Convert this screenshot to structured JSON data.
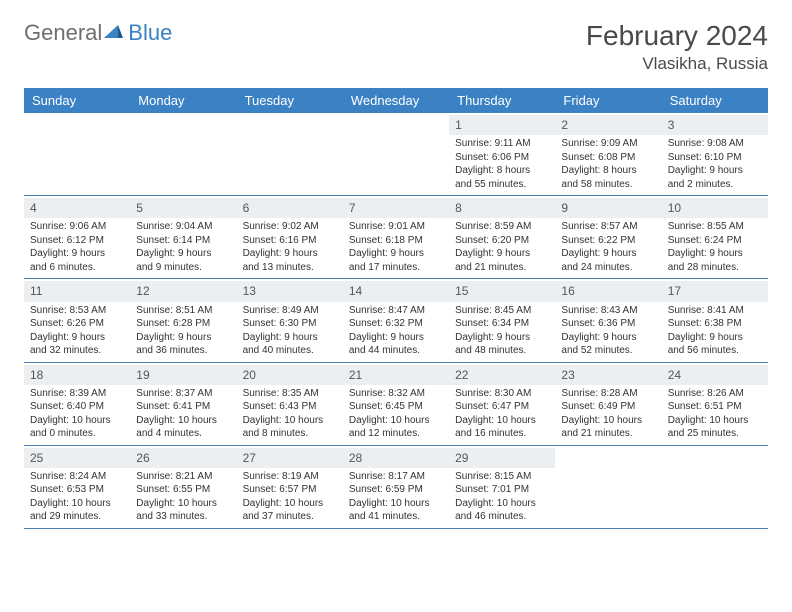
{
  "logo": {
    "general": "General",
    "blue": "Blue"
  },
  "title": "February 2024",
  "location": "Vlasikha, Russia",
  "colors": {
    "header_bg": "#3b82c4",
    "header_fg": "#ffffff",
    "daynum_bg": "#eceff1",
    "text": "#333333",
    "rule": "#4a82b5"
  },
  "weekdays": [
    "Sunday",
    "Monday",
    "Tuesday",
    "Wednesday",
    "Thursday",
    "Friday",
    "Saturday"
  ],
  "weeks": [
    [
      {
        "n": "",
        "sr": "",
        "ss": "",
        "d1": "",
        "d2": ""
      },
      {
        "n": "",
        "sr": "",
        "ss": "",
        "d1": "",
        "d2": ""
      },
      {
        "n": "",
        "sr": "",
        "ss": "",
        "d1": "",
        "d2": ""
      },
      {
        "n": "",
        "sr": "",
        "ss": "",
        "d1": "",
        "d2": ""
      },
      {
        "n": "1",
        "sr": "Sunrise: 9:11 AM",
        "ss": "Sunset: 6:06 PM",
        "d1": "Daylight: 8 hours",
        "d2": "and 55 minutes."
      },
      {
        "n": "2",
        "sr": "Sunrise: 9:09 AM",
        "ss": "Sunset: 6:08 PM",
        "d1": "Daylight: 8 hours",
        "d2": "and 58 minutes."
      },
      {
        "n": "3",
        "sr": "Sunrise: 9:08 AM",
        "ss": "Sunset: 6:10 PM",
        "d1": "Daylight: 9 hours",
        "d2": "and 2 minutes."
      }
    ],
    [
      {
        "n": "4",
        "sr": "Sunrise: 9:06 AM",
        "ss": "Sunset: 6:12 PM",
        "d1": "Daylight: 9 hours",
        "d2": "and 6 minutes."
      },
      {
        "n": "5",
        "sr": "Sunrise: 9:04 AM",
        "ss": "Sunset: 6:14 PM",
        "d1": "Daylight: 9 hours",
        "d2": "and 9 minutes."
      },
      {
        "n": "6",
        "sr": "Sunrise: 9:02 AM",
        "ss": "Sunset: 6:16 PM",
        "d1": "Daylight: 9 hours",
        "d2": "and 13 minutes."
      },
      {
        "n": "7",
        "sr": "Sunrise: 9:01 AM",
        "ss": "Sunset: 6:18 PM",
        "d1": "Daylight: 9 hours",
        "d2": "and 17 minutes."
      },
      {
        "n": "8",
        "sr": "Sunrise: 8:59 AM",
        "ss": "Sunset: 6:20 PM",
        "d1": "Daylight: 9 hours",
        "d2": "and 21 minutes."
      },
      {
        "n": "9",
        "sr": "Sunrise: 8:57 AM",
        "ss": "Sunset: 6:22 PM",
        "d1": "Daylight: 9 hours",
        "d2": "and 24 minutes."
      },
      {
        "n": "10",
        "sr": "Sunrise: 8:55 AM",
        "ss": "Sunset: 6:24 PM",
        "d1": "Daylight: 9 hours",
        "d2": "and 28 minutes."
      }
    ],
    [
      {
        "n": "11",
        "sr": "Sunrise: 8:53 AM",
        "ss": "Sunset: 6:26 PM",
        "d1": "Daylight: 9 hours",
        "d2": "and 32 minutes."
      },
      {
        "n": "12",
        "sr": "Sunrise: 8:51 AM",
        "ss": "Sunset: 6:28 PM",
        "d1": "Daylight: 9 hours",
        "d2": "and 36 minutes."
      },
      {
        "n": "13",
        "sr": "Sunrise: 8:49 AM",
        "ss": "Sunset: 6:30 PM",
        "d1": "Daylight: 9 hours",
        "d2": "and 40 minutes."
      },
      {
        "n": "14",
        "sr": "Sunrise: 8:47 AM",
        "ss": "Sunset: 6:32 PM",
        "d1": "Daylight: 9 hours",
        "d2": "and 44 minutes."
      },
      {
        "n": "15",
        "sr": "Sunrise: 8:45 AM",
        "ss": "Sunset: 6:34 PM",
        "d1": "Daylight: 9 hours",
        "d2": "and 48 minutes."
      },
      {
        "n": "16",
        "sr": "Sunrise: 8:43 AM",
        "ss": "Sunset: 6:36 PM",
        "d1": "Daylight: 9 hours",
        "d2": "and 52 minutes."
      },
      {
        "n": "17",
        "sr": "Sunrise: 8:41 AM",
        "ss": "Sunset: 6:38 PM",
        "d1": "Daylight: 9 hours",
        "d2": "and 56 minutes."
      }
    ],
    [
      {
        "n": "18",
        "sr": "Sunrise: 8:39 AM",
        "ss": "Sunset: 6:40 PM",
        "d1": "Daylight: 10 hours",
        "d2": "and 0 minutes."
      },
      {
        "n": "19",
        "sr": "Sunrise: 8:37 AM",
        "ss": "Sunset: 6:41 PM",
        "d1": "Daylight: 10 hours",
        "d2": "and 4 minutes."
      },
      {
        "n": "20",
        "sr": "Sunrise: 8:35 AM",
        "ss": "Sunset: 6:43 PM",
        "d1": "Daylight: 10 hours",
        "d2": "and 8 minutes."
      },
      {
        "n": "21",
        "sr": "Sunrise: 8:32 AM",
        "ss": "Sunset: 6:45 PM",
        "d1": "Daylight: 10 hours",
        "d2": "and 12 minutes."
      },
      {
        "n": "22",
        "sr": "Sunrise: 8:30 AM",
        "ss": "Sunset: 6:47 PM",
        "d1": "Daylight: 10 hours",
        "d2": "and 16 minutes."
      },
      {
        "n": "23",
        "sr": "Sunrise: 8:28 AM",
        "ss": "Sunset: 6:49 PM",
        "d1": "Daylight: 10 hours",
        "d2": "and 21 minutes."
      },
      {
        "n": "24",
        "sr": "Sunrise: 8:26 AM",
        "ss": "Sunset: 6:51 PM",
        "d1": "Daylight: 10 hours",
        "d2": "and 25 minutes."
      }
    ],
    [
      {
        "n": "25",
        "sr": "Sunrise: 8:24 AM",
        "ss": "Sunset: 6:53 PM",
        "d1": "Daylight: 10 hours",
        "d2": "and 29 minutes."
      },
      {
        "n": "26",
        "sr": "Sunrise: 8:21 AM",
        "ss": "Sunset: 6:55 PM",
        "d1": "Daylight: 10 hours",
        "d2": "and 33 minutes."
      },
      {
        "n": "27",
        "sr": "Sunrise: 8:19 AM",
        "ss": "Sunset: 6:57 PM",
        "d1": "Daylight: 10 hours",
        "d2": "and 37 minutes."
      },
      {
        "n": "28",
        "sr": "Sunrise: 8:17 AM",
        "ss": "Sunset: 6:59 PM",
        "d1": "Daylight: 10 hours",
        "d2": "and 41 minutes."
      },
      {
        "n": "29",
        "sr": "Sunrise: 8:15 AM",
        "ss": "Sunset: 7:01 PM",
        "d1": "Daylight: 10 hours",
        "d2": "and 46 minutes."
      },
      {
        "n": "",
        "sr": "",
        "ss": "",
        "d1": "",
        "d2": ""
      },
      {
        "n": "",
        "sr": "",
        "ss": "",
        "d1": "",
        "d2": ""
      }
    ]
  ]
}
